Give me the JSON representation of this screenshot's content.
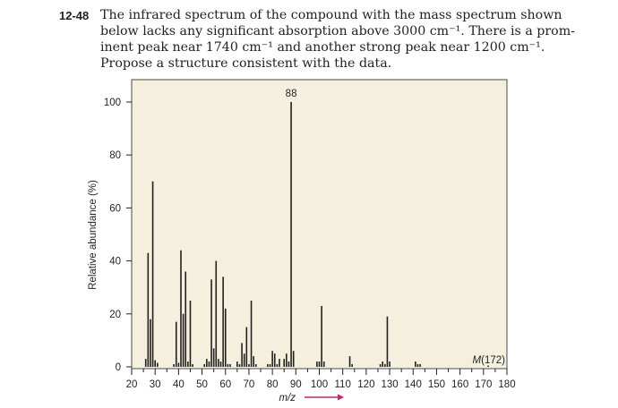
{
  "problem": {
    "number": "12-48",
    "lines": [
      "The infrared spectrum of the compound with the mass spectrum shown",
      "below lacks any significant absorption above 3000 cm⁻¹. There is a prom-",
      "inent peak near 1740 cm⁻¹ and another strong peak near 1200 cm⁻¹.",
      "Propose a structure consistent with the data."
    ]
  },
  "colors": {
    "plot_bg": "#f4f0dd",
    "bars": "#231f20",
    "arrow": "#d6206f"
  },
  "chart_data": {
    "type": "bar",
    "ylabel": "Relative abundance (%)",
    "xlabel": "m/z",
    "xlim": [
      20,
      180
    ],
    "ylim": [
      0,
      100
    ],
    "xticks": [
      20,
      30,
      40,
      50,
      60,
      70,
      80,
      90,
      100,
      110,
      120,
      130,
      140,
      150,
      160,
      170,
      180
    ],
    "yticks": [
      0,
      20,
      40,
      60,
      80,
      100
    ],
    "x": [
      26,
      27,
      28,
      29,
      30,
      31,
      38,
      39,
      40,
      41,
      42,
      43,
      44,
      45,
      46,
      51,
      52,
      53,
      54,
      55,
      56,
      57,
      58,
      59,
      60,
      61,
      62,
      65,
      66,
      67,
      68,
      69,
      70,
      71,
      72,
      73,
      78,
      79,
      80,
      81,
      82,
      83,
      85,
      86,
      87,
      88,
      89,
      99,
      100,
      101,
      102,
      113,
      114,
      126,
      127,
      128,
      129,
      130,
      141,
      142,
      143,
      172
    ],
    "values": [
      3,
      43,
      18,
      70,
      2.5,
      1.5,
      1,
      17,
      1.5,
      44,
      20,
      36,
      2,
      25,
      1,
      1,
      3,
      2,
      33,
      7,
      40,
      3,
      2,
      34,
      22,
      1,
      1,
      2,
      1,
      9,
      5,
      15,
      1,
      25,
      4,
      1,
      1,
      1,
      6,
      5,
      1,
      3,
      3,
      5,
      2,
      100,
      6,
      2,
      2,
      23,
      2,
      4,
      1,
      1,
      2,
      1,
      19,
      2,
      2,
      1,
      1,
      0.5
    ],
    "peak_labels": [
      {
        "x": 88,
        "text": "88"
      }
    ],
    "annotations": [
      {
        "x": 172,
        "text": "M(172)"
      }
    ]
  }
}
